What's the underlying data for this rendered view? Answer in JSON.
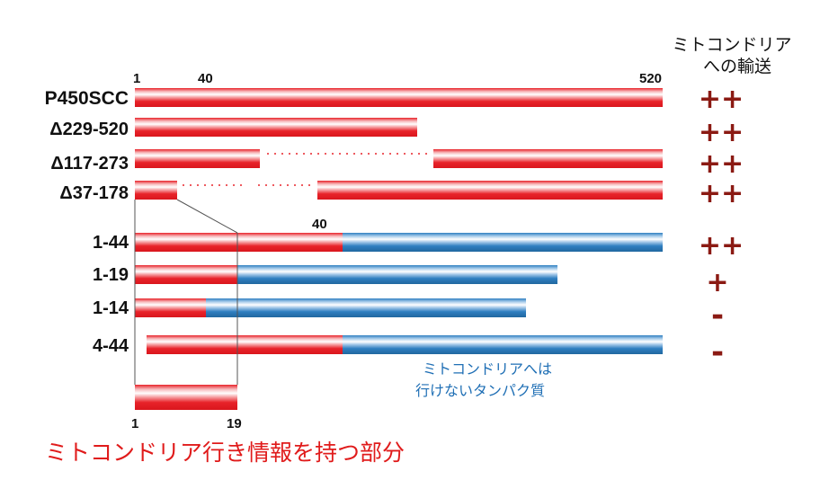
{
  "header": {
    "result_title_line1": "ミトコンドリア",
    "result_title_line2": "への輸送"
  },
  "scale": {
    "start": "1",
    "mid": "40",
    "end": "520"
  },
  "constructs": [
    {
      "name": "P450SCC",
      "result": "++"
    },
    {
      "name": "Δ229-520",
      "result": "++"
    },
    {
      "name": "Δ117-273",
      "result": "++"
    },
    {
      "name": "Δ37-178",
      "result": "++"
    },
    {
      "name": "1-44",
      "result": "++"
    },
    {
      "name": "1-19",
      "result": "+"
    },
    {
      "name": "1-14",
      "result": "-"
    },
    {
      "name": "4-44",
      "result": "-"
    }
  ],
  "marker_40": "40",
  "blue_note": {
    "line1": "ミトコンドリアへは",
    "line2": "行けないタンパク質"
  },
  "zoom": {
    "start": "1",
    "end": "19"
  },
  "caption": "ミトコンドリア行き情報を持つ部分",
  "colors": {
    "red": "#e8232a",
    "blue": "#2f7fc1",
    "result": "#8b1a13",
    "caption": "#e01b1b",
    "note": "#1f6fb5"
  }
}
